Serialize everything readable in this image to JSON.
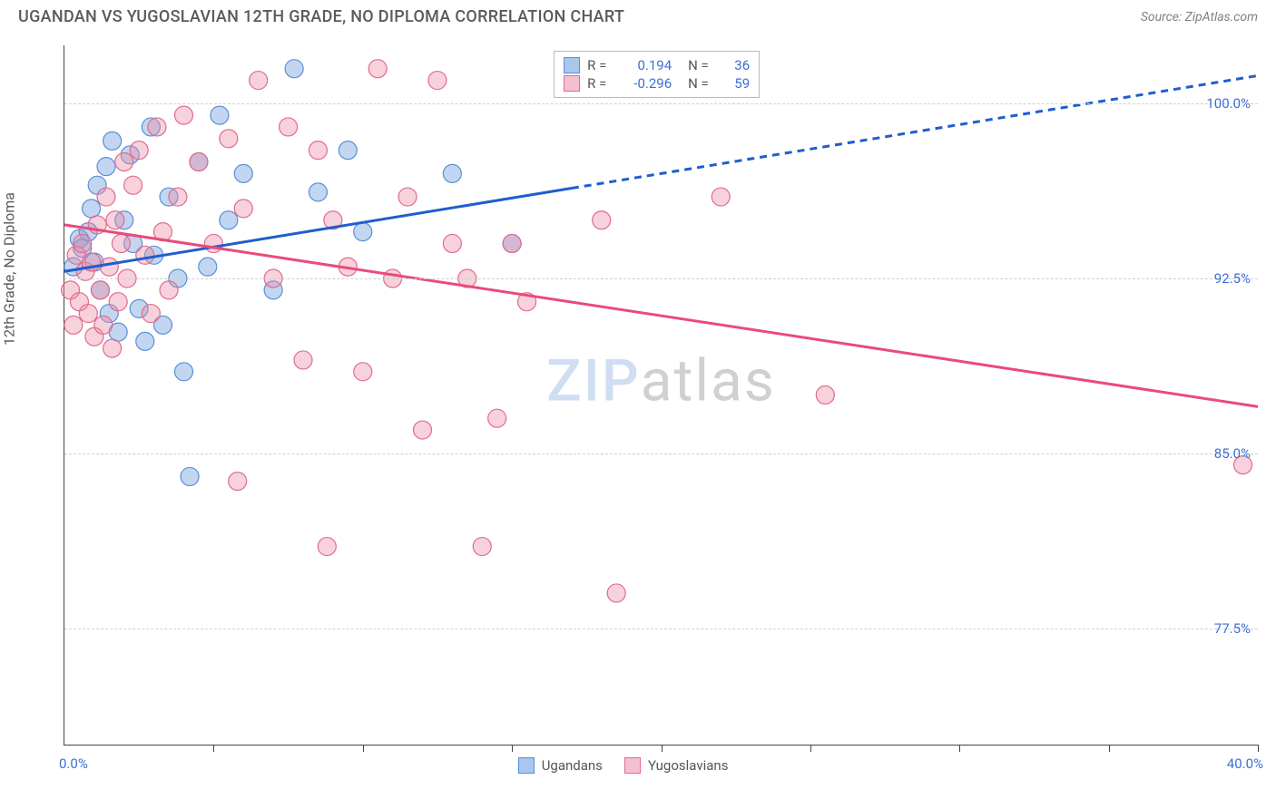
{
  "header": {
    "title": "UGANDAN VS YUGOSLAVIAN 12TH GRADE, NO DIPLOMA CORRELATION CHART",
    "source_prefix": "Source: ",
    "source": "ZipAtlas.com"
  },
  "chart": {
    "type": "scatter",
    "ylabel": "12th Grade, No Diploma",
    "xlim": [
      0,
      40
    ],
    "ylim": [
      72.5,
      102.5
    ],
    "ytick_values": [
      77.5,
      85.0,
      92.5,
      100.0
    ],
    "ytick_labels": [
      "77.5%",
      "85.0%",
      "92.5%",
      "100.0%"
    ],
    "xtick_positions": [
      0,
      5,
      10,
      15,
      20,
      25,
      30,
      35,
      40
    ],
    "xlabel_min": "0.0%",
    "xlabel_max": "40.0%",
    "background_color": "#ffffff",
    "grid_color": "#d0d0d0",
    "axis_color": "#444444",
    "series": [
      {
        "name": "Ugandans",
        "color_fill": "rgba(120,165,225,0.45)",
        "color_stroke": "#5a8fd6",
        "color_swatch": "#a9c6ec",
        "color_swatch_border": "#5a8fd6",
        "r": 0.194,
        "n": 36,
        "marker_radius": 10,
        "trend": {
          "color": "#1f5ecc",
          "width": 3,
          "y_at_x0": 92.8,
          "y_at_x40": 101.2,
          "solid_until_x": 17
        },
        "points": [
          [
            0.3,
            93.0
          ],
          [
            0.5,
            94.2
          ],
          [
            0.6,
            93.8
          ],
          [
            0.8,
            94.5
          ],
          [
            0.9,
            95.5
          ],
          [
            1.0,
            93.2
          ],
          [
            1.1,
            96.5
          ],
          [
            1.2,
            92.0
          ],
          [
            1.4,
            97.3
          ],
          [
            1.5,
            91.0
          ],
          [
            1.6,
            98.4
          ],
          [
            1.8,
            90.2
          ],
          [
            2.0,
            95.0
          ],
          [
            2.2,
            97.8
          ],
          [
            2.3,
            94.0
          ],
          [
            2.5,
            91.2
          ],
          [
            2.7,
            89.8
          ],
          [
            2.9,
            99.0
          ],
          [
            3.0,
            93.5
          ],
          [
            3.3,
            90.5
          ],
          [
            3.5,
            96.0
          ],
          [
            3.8,
            92.5
          ],
          [
            4.0,
            88.5
          ],
          [
            4.2,
            84.0
          ],
          [
            4.5,
            97.5
          ],
          [
            4.8,
            93.0
          ],
          [
            5.2,
            99.5
          ],
          [
            5.5,
            95.0
          ],
          [
            6.0,
            97.0
          ],
          [
            7.0,
            92.0
          ],
          [
            7.7,
            101.5
          ],
          [
            8.5,
            96.2
          ],
          [
            9.5,
            98.0
          ],
          [
            10.0,
            94.5
          ],
          [
            13.0,
            97.0
          ],
          [
            15.0,
            94.0
          ]
        ]
      },
      {
        "name": "Yugoslavians",
        "color_fill": "rgba(235,140,165,0.40)",
        "color_stroke": "#e16b8e",
        "color_swatch": "#f3c0cf",
        "color_swatch_border": "#e16b8e",
        "r": -0.296,
        "n": 59,
        "marker_radius": 10,
        "trend": {
          "color": "#e94b7a",
          "width": 3,
          "y_at_x0": 94.8,
          "y_at_x40": 87.0,
          "solid_until_x": 40
        },
        "points": [
          [
            0.2,
            92.0
          ],
          [
            0.4,
            93.5
          ],
          [
            0.5,
            91.5
          ],
          [
            0.6,
            94.0
          ],
          [
            0.7,
            92.8
          ],
          [
            0.8,
            91.0
          ],
          [
            0.9,
            93.2
          ],
          [
            1.0,
            90.0
          ],
          [
            1.1,
            94.8
          ],
          [
            1.2,
            92.0
          ],
          [
            1.3,
            90.5
          ],
          [
            1.4,
            96.0
          ],
          [
            1.5,
            93.0
          ],
          [
            1.6,
            89.5
          ],
          [
            1.7,
            95.0
          ],
          [
            1.8,
            91.5
          ],
          [
            1.9,
            94.0
          ],
          [
            2.0,
            97.5
          ],
          [
            2.1,
            92.5
          ],
          [
            2.3,
            96.5
          ],
          [
            2.5,
            98.0
          ],
          [
            2.7,
            93.5
          ],
          [
            2.9,
            91.0
          ],
          [
            3.1,
            99.0
          ],
          [
            3.3,
            94.5
          ],
          [
            3.5,
            92.0
          ],
          [
            3.8,
            96.0
          ],
          [
            4.0,
            99.5
          ],
          [
            4.5,
            97.5
          ],
          [
            5.0,
            94.0
          ],
          [
            5.5,
            98.5
          ],
          [
            5.8,
            83.8
          ],
          [
            6.0,
            95.5
          ],
          [
            6.5,
            101.0
          ],
          [
            7.0,
            92.5
          ],
          [
            7.5,
            99.0
          ],
          [
            8.0,
            89.0
          ],
          [
            8.5,
            98.0
          ],
          [
            8.8,
            81.0
          ],
          [
            9.0,
            95.0
          ],
          [
            9.5,
            93.0
          ],
          [
            10.0,
            88.5
          ],
          [
            10.5,
            101.5
          ],
          [
            11.0,
            92.5
          ],
          [
            11.5,
            96.0
          ],
          [
            12.0,
            86.0
          ],
          [
            12.5,
            101.0
          ],
          [
            13.0,
            94.0
          ],
          [
            13.5,
            92.5
          ],
          [
            14.0,
            81.0
          ],
          [
            14.5,
            86.5
          ],
          [
            15.0,
            94.0
          ],
          [
            15.5,
            91.5
          ],
          [
            18.0,
            95.0
          ],
          [
            18.5,
            79.0
          ],
          [
            22.0,
            96.0
          ],
          [
            25.5,
            87.5
          ],
          [
            39.5,
            84.5
          ],
          [
            0.3,
            90.5
          ]
        ]
      }
    ],
    "legend_top": {
      "r_label": "R =",
      "n_label": "N ="
    },
    "legend_bottom": {
      "items": [
        "Ugandans",
        "Yugoslavians"
      ]
    },
    "watermark": {
      "part1": "ZIP",
      "part2": "atlas"
    }
  }
}
